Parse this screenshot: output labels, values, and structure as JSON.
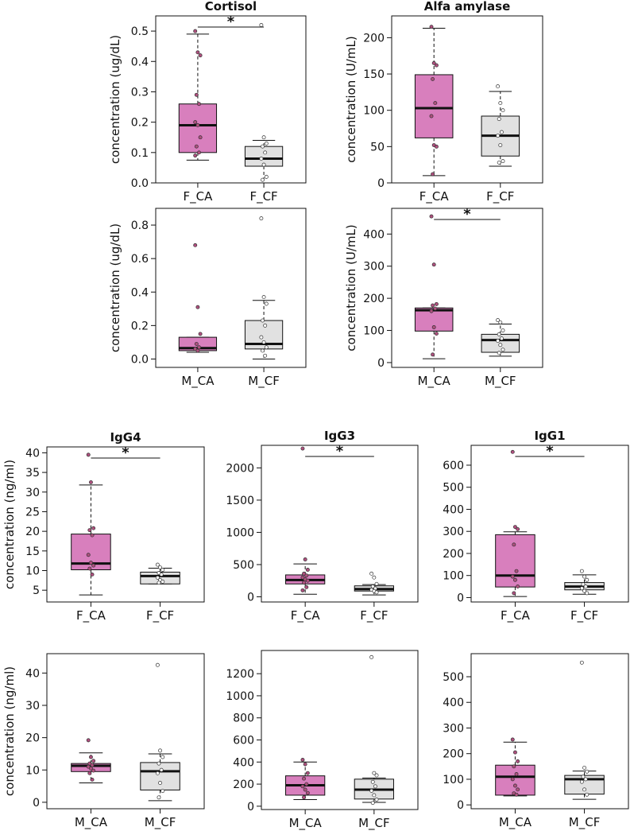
{
  "colors": {
    "ca_fill": "#d87fbd",
    "cf_fill": "#e1e1e1",
    "line": "#111111",
    "point_ca": "#b0507f",
    "point_cf": "#ffffff"
  },
  "chart_data": [
    {
      "id": "cortisol_f",
      "type": "box",
      "title": "Cortisol",
      "ylabel": "concentration (ug/dL)",
      "ylim": [
        0,
        0.55
      ],
      "yticks": [
        0,
        0.1,
        0.2,
        0.3,
        0.4,
        0.5
      ],
      "tick_labels": [
        "0.0",
        "0.1",
        "0.2",
        "0.3",
        "0.4",
        "0.5"
      ],
      "categories": [
        "F_CA",
        "F_CF"
      ],
      "significance": "*",
      "boxes": [
        {
          "min": 0.075,
          "q1": 0.1,
          "median": 0.19,
          "q3": 0.26,
          "max": 0.49,
          "points": [
            0.5,
            0.43,
            0.42,
            0.29,
            0.26,
            0.2,
            0.19,
            0.15,
            0.12,
            0.1,
            0.09
          ]
        },
        {
          "min": 0.0,
          "q1": 0.055,
          "median": 0.08,
          "q3": 0.12,
          "max": 0.14,
          "points": [
            0.52,
            0.15,
            0.13,
            0.12,
            0.1,
            0.08,
            0.06,
            0.02,
            0.01
          ]
        }
      ]
    },
    {
      "id": "amylase_f",
      "type": "box",
      "title": "Alfa amylase",
      "ylabel": "concentration (U/mL)",
      "ylim": [
        0,
        230
      ],
      "yticks": [
        0,
        50,
        100,
        150,
        200
      ],
      "tick_labels": [
        "0",
        "50",
        "100",
        "150",
        "200"
      ],
      "categories": [
        "F_CA",
        "F_CF"
      ],
      "significance": "",
      "boxes": [
        {
          "min": 10,
          "q1": 62,
          "median": 103,
          "q3": 149,
          "max": 213,
          "points": [
            215,
            165,
            162,
            143,
            110,
            92,
            52,
            50,
            12
          ]
        },
        {
          "min": 23,
          "q1": 37,
          "median": 65,
          "q3": 92,
          "max": 126,
          "points": [
            133,
            110,
            100,
            88,
            70,
            65,
            52,
            30,
            28
          ]
        }
      ]
    },
    {
      "id": "cortisol_m",
      "type": "box",
      "title": "",
      "ylabel": "concentration (ug/dL)",
      "ylim": [
        -0.05,
        0.9
      ],
      "yticks": [
        0,
        0.2,
        0.4,
        0.6,
        0.8
      ],
      "tick_labels": [
        "0.0",
        "0.2",
        "0.4",
        "0.6",
        "0.8"
      ],
      "categories": [
        "M_CA",
        "M_CF"
      ],
      "significance": "",
      "boxes": [
        {
          "min": 0.04,
          "q1": 0.05,
          "median": 0.065,
          "q3": 0.13,
          "max": 0.13,
          "points": [
            0.68,
            0.31,
            0.15,
            0.09,
            0.07,
            0.06,
            0.05
          ]
        },
        {
          "min": 0.0,
          "q1": 0.06,
          "median": 0.09,
          "q3": 0.23,
          "max": 0.35,
          "points": [
            0.84,
            0.37,
            0.33,
            0.23,
            0.2,
            0.13,
            0.1,
            0.07,
            0.05,
            0.02
          ]
        }
      ]
    },
    {
      "id": "amylase_m",
      "type": "box",
      "title": "",
      "ylabel": "concentration (U/mL)",
      "ylim": [
        -15,
        480
      ],
      "yticks": [
        0,
        100,
        200,
        300,
        400
      ],
      "tick_labels": [
        "0",
        "100",
        "200",
        "300",
        "400"
      ],
      "categories": [
        "M_CA",
        "M_CF"
      ],
      "significance": "*",
      "boxes": [
        {
          "min": 12,
          "q1": 98,
          "median": 163,
          "q3": 170,
          "max": 170,
          "points": [
            455,
            305,
            182,
            178,
            168,
            160,
            110,
            90,
            25
          ]
        },
        {
          "min": 20,
          "q1": 32,
          "median": 70,
          "q3": 88,
          "max": 120,
          "points": [
            132,
            125,
            100,
            88,
            75,
            68,
            55,
            40,
            30
          ]
        }
      ]
    },
    {
      "id": "igg4_f",
      "type": "box",
      "title": "IgG4",
      "ylabel": "concentration (ng/ml)",
      "ylim": [
        2,
        41.5
      ],
      "yticks": [
        5,
        10,
        15,
        20,
        25,
        30,
        35,
        40
      ],
      "tick_labels": [
        "5",
        "10",
        "15",
        "20",
        "25",
        "30",
        "35",
        "40"
      ],
      "categories": [
        "F_CA",
        "F_CF"
      ],
      "significance": "*",
      "boxes": [
        {
          "min": 3.8,
          "q1": 10.2,
          "median": 11.8,
          "q3": 19.3,
          "max": 31.8,
          "points": [
            39.5,
            32.5,
            20.8,
            20.3,
            19.0,
            14.0,
            12.0,
            11.3,
            10.5,
            9.0
          ]
        },
        {
          "min": 6.6,
          "q1": 6.6,
          "median": 8.6,
          "q3": 9.6,
          "max": 10.6,
          "points": [
            11.5,
            10.8,
            10.2,
            9.4,
            9.0,
            8.2,
            7.6,
            7.2,
            6.9
          ]
        }
      ]
    },
    {
      "id": "igg3_f",
      "type": "box",
      "title": "IgG3",
      "ylabel": "",
      "ylim": [
        -80,
        2350
      ],
      "yticks": [
        0,
        500,
        1000,
        1500,
        2000
      ],
      "tick_labels": [
        "0",
        "500",
        "1000",
        "1500",
        "2000"
      ],
      "categories": [
        "F_CA",
        "F_CF"
      ],
      "significance": "*",
      "boxes": [
        {
          "min": 40,
          "q1": 200,
          "median": 260,
          "q3": 340,
          "max": 510,
          "points": [
            2300,
            580,
            420,
            360,
            330,
            300,
            270,
            250,
            220,
            150,
            100
          ]
        },
        {
          "min": 30,
          "q1": 90,
          "median": 120,
          "q3": 170,
          "max": 190,
          "points": [
            360,
            300,
            200,
            160,
            130,
            110,
            90,
            70
          ]
        }
      ]
    },
    {
      "id": "igg1_f",
      "type": "box",
      "title": "IgG1",
      "ylabel": "",
      "ylim": [
        -20,
        690
      ],
      "yticks": [
        0,
        100,
        200,
        300,
        400,
        500,
        600
      ],
      "tick_labels": [
        "0",
        "100",
        "200",
        "300",
        "400",
        "500",
        "600"
      ],
      "categories": [
        "F_CA",
        "F_CF"
      ],
      "significance": "*",
      "boxes": [
        {
          "min": 5,
          "q1": 48,
          "median": 100,
          "q3": 285,
          "max": 298,
          "points": [
            660,
            320,
            310,
            240,
            120,
            95,
            80,
            50,
            20
          ]
        },
        {
          "min": 15,
          "q1": 35,
          "median": 50,
          "q3": 68,
          "max": 103,
          "points": [
            120,
            95,
            80,
            60,
            50,
            42,
            30,
            20
          ]
        }
      ]
    },
    {
      "id": "igg4_m",
      "type": "box",
      "title": "",
      "ylabel": "concentration (ng/ml)",
      "ylim": [
        -2,
        46
      ],
      "yticks": [
        0,
        10,
        20,
        30,
        40
      ],
      "tick_labels": [
        "0",
        "10",
        "20",
        "30",
        "40"
      ],
      "categories": [
        "M_CA",
        "M_CF"
      ],
      "significance": "",
      "boxes": [
        {
          "min": 6.0,
          "q1": 9.5,
          "median": 11.3,
          "q3": 12.0,
          "max": 15.3,
          "points": [
            19.2,
            14.0,
            12.8,
            12.0,
            11.5,
            11.0,
            10.5,
            9.8,
            9.0,
            7.0
          ]
        },
        {
          "min": 0.5,
          "q1": 3.8,
          "median": 9.6,
          "q3": 12.3,
          "max": 15.0,
          "points": [
            42.5,
            16.0,
            14.0,
            12.0,
            10.0,
            9.0,
            6.0,
            3.5,
            1.5
          ]
        }
      ]
    },
    {
      "id": "igg3_m",
      "type": "box",
      "title": "",
      "ylabel": "",
      "ylim": [
        -30,
        1410
      ],
      "yticks": [
        0,
        200,
        400,
        600,
        800,
        1000,
        1200
      ],
      "tick_labels": [
        "0",
        "200",
        "400",
        "600",
        "800",
        "1000",
        "1200"
      ],
      "categories": [
        "M_CA",
        "M_CF"
      ],
      "significance": "",
      "boxes": [
        {
          "min": 60,
          "q1": 100,
          "median": 190,
          "q3": 275,
          "max": 400,
          "points": [
            420,
            380,
            300,
            250,
            200,
            180,
            150,
            120,
            80
          ]
        },
        {
          "min": 35,
          "q1": 65,
          "median": 150,
          "q3": 245,
          "max": 255,
          "points": [
            1350,
            300,
            280,
            220,
            180,
            140,
            100,
            60,
            30
          ]
        }
      ]
    },
    {
      "id": "igg1_m",
      "type": "box",
      "title": "",
      "ylabel": "",
      "ylim": [
        -15,
        590
      ],
      "yticks": [
        0,
        100,
        200,
        300,
        400,
        500
      ],
      "tick_labels": [
        "0",
        "100",
        "200",
        "300",
        "400",
        "500"
      ],
      "categories": [
        "M_CA",
        "M_CF"
      ],
      "significance": "",
      "boxes": [
        {
          "min": 35,
          "q1": 38,
          "median": 110,
          "q3": 155,
          "max": 245,
          "points": [
            255,
            205,
            170,
            150,
            120,
            100,
            75,
            60,
            45,
            40
          ]
        },
        {
          "min": 22,
          "q1": 42,
          "median": 100,
          "q3": 115,
          "max": 132,
          "points": [
            555,
            145,
            130,
            110,
            100,
            90,
            60,
            40
          ]
        }
      ]
    }
  ]
}
